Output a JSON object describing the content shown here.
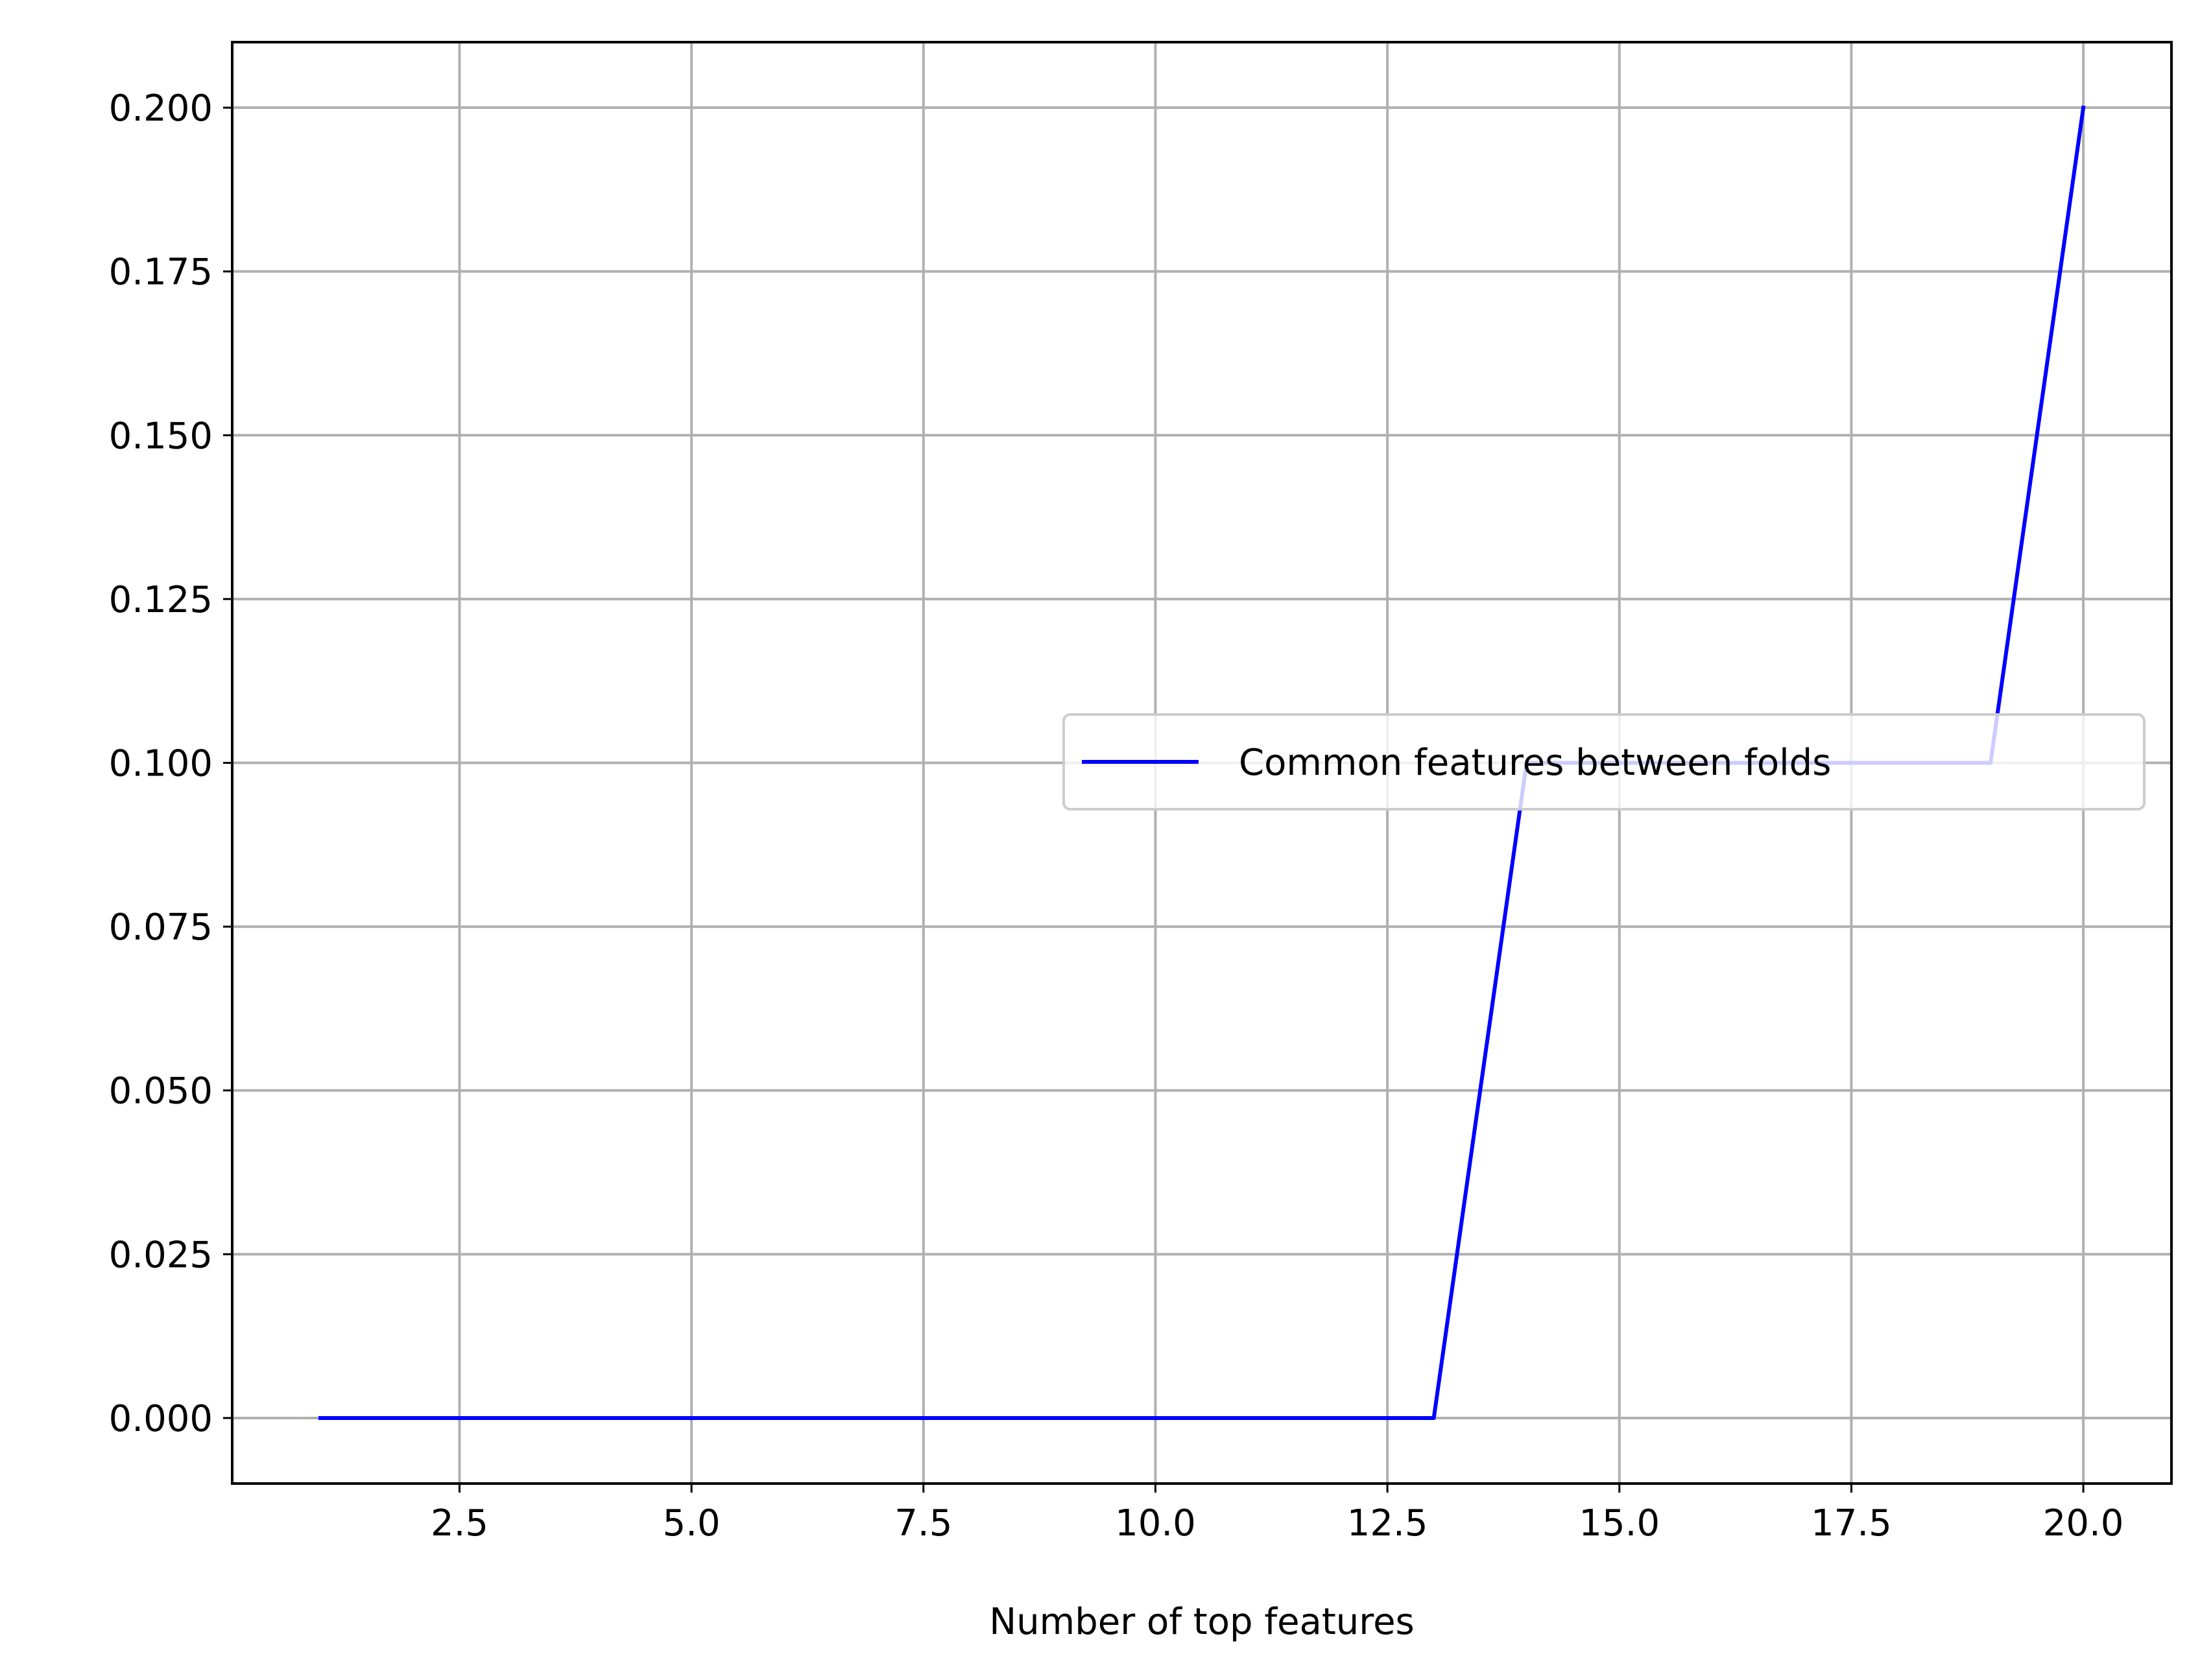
{
  "chart_data": {
    "type": "line",
    "title": "",
    "xlabel": "Number of top features",
    "ylabel": "",
    "xlim": [
      0.05,
      20.95
    ],
    "ylim": [
      -0.01,
      0.21
    ],
    "grid": true,
    "legend_position": "center-right",
    "x_ticks": [
      2.5,
      5.0,
      7.5,
      10.0,
      12.5,
      15.0,
      17.5,
      20.0
    ],
    "x_tick_labels": [
      "2.5",
      "5.0",
      "7.5",
      "10.0",
      "12.5",
      "15.0",
      "17.5",
      "20.0"
    ],
    "y_ticks": [
      0.0,
      0.025,
      0.05,
      0.075,
      0.1,
      0.125,
      0.15,
      0.175,
      0.2
    ],
    "y_tick_labels": [
      "0.000",
      "0.025",
      "0.050",
      "0.075",
      "0.100",
      "0.125",
      "0.150",
      "0.175",
      "0.200"
    ],
    "series": [
      {
        "name": "Common features between folds",
        "color": "#0000ff",
        "x": [
          1,
          2,
          3,
          4,
          5,
          6,
          7,
          8,
          9,
          10,
          11,
          12,
          13,
          14,
          15,
          16,
          17,
          18,
          19,
          20
        ],
        "y": [
          0,
          0,
          0,
          0,
          0,
          0,
          0,
          0,
          0,
          0,
          0,
          0,
          0,
          0.1,
          0.1,
          0.1,
          0.1,
          0.1,
          0.1,
          0.2
        ]
      }
    ]
  }
}
